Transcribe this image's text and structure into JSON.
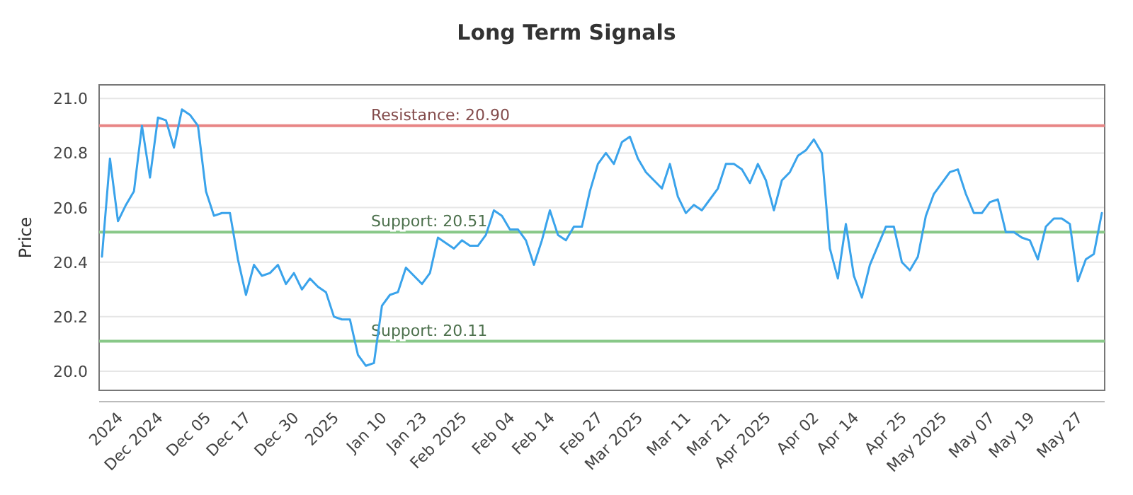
{
  "chart_data": {
    "type": "line",
    "title": "Long Term Signals",
    "ylabel": "Price",
    "categories": [
      null,
      null,
      "2024",
      null,
      null,
      null,
      null,
      "Dec 2024",
      null,
      null,
      null,
      null,
      null,
      "Dec 05",
      null,
      null,
      null,
      null,
      "Dec 17",
      null,
      null,
      null,
      null,
      null,
      "Dec 30",
      null,
      null,
      null,
      null,
      "2025",
      null,
      null,
      null,
      null,
      null,
      "Jan 10",
      null,
      null,
      null,
      null,
      "Jan 23",
      null,
      null,
      null,
      null,
      "Feb 2025",
      null,
      null,
      null,
      null,
      null,
      "Feb 04",
      null,
      null,
      null,
      null,
      "Feb 14",
      null,
      null,
      null,
      null,
      null,
      "Feb 27",
      null,
      null,
      null,
      null,
      "Mar 2025",
      null,
      null,
      null,
      null,
      null,
      "Mar 11",
      null,
      null,
      null,
      null,
      "Mar 21",
      null,
      null,
      null,
      null,
      "Apr 2025",
      null,
      null,
      null,
      null,
      null,
      "Apr 02",
      null,
      null,
      null,
      null,
      "Apr 14",
      null,
      null,
      null,
      null,
      null,
      "Apr 25",
      null,
      null,
      null,
      null,
      "May 2025",
      null,
      null,
      null,
      null,
      null,
      "May 07",
      null,
      null,
      null,
      null,
      "May 19",
      null,
      null,
      null,
      null,
      null,
      "May 27",
      null,
      null,
      null
    ],
    "series": [
      {
        "color": "#3aa3eb",
        "values": [
          20.42,
          20.78,
          20.55,
          20.61,
          20.66,
          20.9,
          20.71,
          20.93,
          20.92,
          20.82,
          20.96,
          20.94,
          20.9,
          20.66,
          20.57,
          20.58,
          20.58,
          20.41,
          20.28,
          20.39,
          20.35,
          20.36,
          20.39,
          20.32,
          20.36,
          20.3,
          20.34,
          20.31,
          20.29,
          20.2,
          20.19,
          20.19,
          20.06,
          20.02,
          20.03,
          20.24,
          20.28,
          20.29,
          20.38,
          20.35,
          20.32,
          20.36,
          20.49,
          20.47,
          20.45,
          20.48,
          20.46,
          20.46,
          20.5,
          20.59,
          20.57,
          20.52,
          20.52,
          20.48,
          20.39,
          20.48,
          20.59,
          20.5,
          20.48,
          20.53,
          20.53,
          20.66,
          20.76,
          20.8,
          20.76,
          20.84,
          20.86,
          20.78,
          20.73,
          20.7,
          20.67,
          20.76,
          20.64,
          20.58,
          20.61,
          20.59,
          20.63,
          20.67,
          20.76,
          20.76,
          20.74,
          20.69,
          20.76,
          20.7,
          20.59,
          20.7,
          20.73,
          20.79,
          20.81,
          20.85,
          20.8,
          20.45,
          20.34,
          20.54,
          20.35,
          20.27,
          20.39,
          20.46,
          20.53,
          20.53,
          20.4,
          20.37,
          20.42,
          20.57,
          20.65,
          20.69,
          20.73,
          20.74,
          20.65,
          20.58,
          20.58,
          20.62,
          20.63,
          20.51,
          20.51,
          20.49,
          20.48,
          20.41,
          20.53,
          20.56,
          20.56,
          20.54,
          20.33,
          20.41,
          20.43,
          20.58
        ]
      }
    ],
    "ylim": [
      19.93,
      21.05
    ],
    "yticks": [
      {
        "value": 20,
        "label": "20.0"
      },
      {
        "value": 20.2,
        "label": "20.2"
      },
      {
        "value": 20.4,
        "label": "20.4"
      },
      {
        "value": 20.6,
        "label": "20.6"
      },
      {
        "value": 20.8,
        "label": "20.8"
      },
      {
        "value": 21,
        "label": "21.0"
      }
    ],
    "grid": "y",
    "marker": "none",
    "line_style": "solid",
    "ref_lines": [
      {
        "axis": "y",
        "value": 20.9,
        "label": "Resistance: 20.90",
        "color": "#e88585"
      },
      {
        "axis": "y",
        "value": 20.51,
        "label": "Support: 20.51",
        "color": "#88c888"
      },
      {
        "axis": "y",
        "value": 20.11,
        "label": "Support: 20.11",
        "color": "#88c888"
      }
    ]
  }
}
